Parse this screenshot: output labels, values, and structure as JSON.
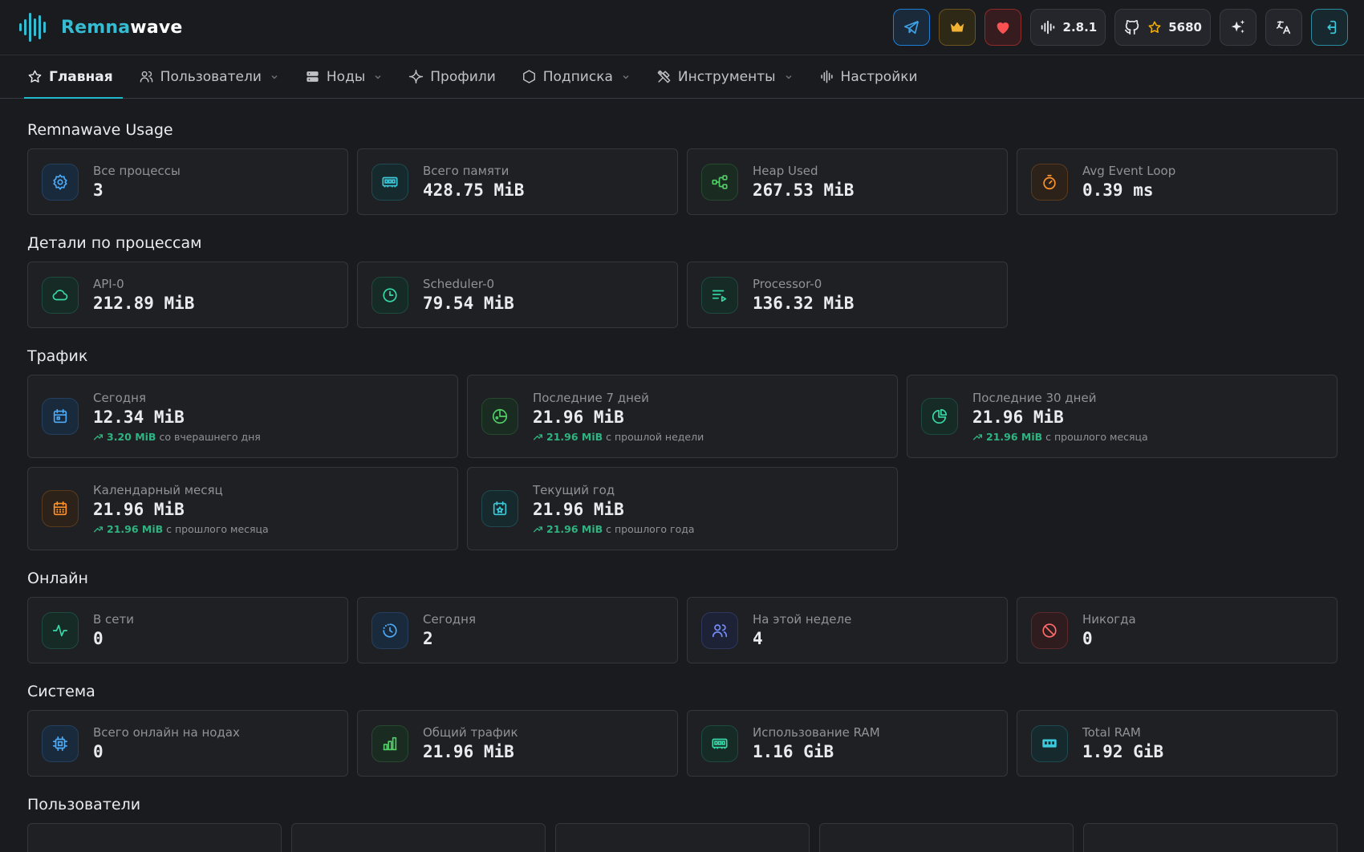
{
  "brand": {
    "part1": "Remna",
    "part2": "wave"
  },
  "header": {
    "version": "2.8.1",
    "stars": "5680",
    "icons": [
      "telegram-icon",
      "crown-icon",
      "heart-icon",
      "version-wave-icon",
      "github-icon",
      "star-icon",
      "sparkles-icon",
      "translate-icon",
      "logout-icon"
    ]
  },
  "nav": {
    "home": "Главная",
    "users": "Пользователи",
    "nodes": "Ноды",
    "profiles": "Профили",
    "subscription": "Подписка",
    "tools": "Инструменты",
    "settings": "Настройки"
  },
  "usage": {
    "title": "Remnawave Usage",
    "cards": [
      {
        "label": "Все процессы",
        "value": "3",
        "icon": "gear-icon"
      },
      {
        "label": "Всего памяти",
        "value": "428.75 MiB",
        "icon": "memory-icon"
      },
      {
        "label": "Heap Used",
        "value": "267.53 MiB",
        "icon": "hierarchy-icon"
      },
      {
        "label": "Avg Event Loop",
        "value": "0.39 ms",
        "icon": "stopwatch-icon"
      }
    ]
  },
  "processes": {
    "title": "Детали по процессам",
    "cards": [
      {
        "label": "API-0",
        "value": "212.89 MiB",
        "icon": "cloud-icon"
      },
      {
        "label": "Scheduler-0",
        "value": "79.54 MiB",
        "icon": "clock-icon"
      },
      {
        "label": "Processor-0",
        "value": "136.32 MiB",
        "icon": "playlist-icon"
      }
    ]
  },
  "traffic": {
    "title": "Трафик",
    "cards": [
      {
        "label": "Сегодня",
        "value": "12.34 MiB",
        "delta": "3.20 MiB",
        "delta_text": "со вчерашнего дня",
        "icon": "calendar-icon"
      },
      {
        "label": "Последние 7 дней",
        "value": "21.96 MiB",
        "delta": "21.96 MiB",
        "delta_text": "с прошлой недели",
        "icon": "chart-dots-icon"
      },
      {
        "label": "Последние 30 дней",
        "value": "21.96 MiB",
        "delta": "21.96 MiB",
        "delta_text": "с прошлого месяца",
        "icon": "pie-chart-icon"
      },
      {
        "label": "Календарный месяц",
        "value": "21.96 MiB",
        "delta": "21.96 MiB",
        "delta_text": "с прошлого месяца",
        "icon": "calendar-month-icon"
      },
      {
        "label": "Текущий год",
        "value": "21.96 MiB",
        "delta": "21.96 MiB",
        "delta_text": "с прошлого года",
        "icon": "calendar-star-icon"
      }
    ]
  },
  "online": {
    "title": "Онлайн",
    "cards": [
      {
        "label": "В сети",
        "value": "0",
        "icon": "activity-icon"
      },
      {
        "label": "Сегодня",
        "value": "2",
        "icon": "clock-dashed-icon"
      },
      {
        "label": "На этой неделе",
        "value": "4",
        "icon": "users-icon"
      },
      {
        "label": "Никогда",
        "value": "0",
        "icon": "ban-icon"
      }
    ]
  },
  "system": {
    "title": "Система",
    "cards": [
      {
        "label": "Всего онлайн на нодах",
        "value": "0",
        "icon": "cpu-icon"
      },
      {
        "label": "Общий трафик",
        "value": "21.96 MiB",
        "icon": "bar-chart-icon"
      },
      {
        "label": "Использование RAM",
        "value": "1.16 GiB",
        "icon": "ram-icon"
      },
      {
        "label": "Total RAM",
        "value": "1.92 GiB",
        "icon": "ram-filled-icon"
      }
    ]
  },
  "users_section": {
    "title": "Пользователи"
  },
  "colors": {
    "accent": "#22b8cf",
    "background": "#1a1b1e",
    "card": "#1f2024",
    "positive": "#2fb380"
  }
}
